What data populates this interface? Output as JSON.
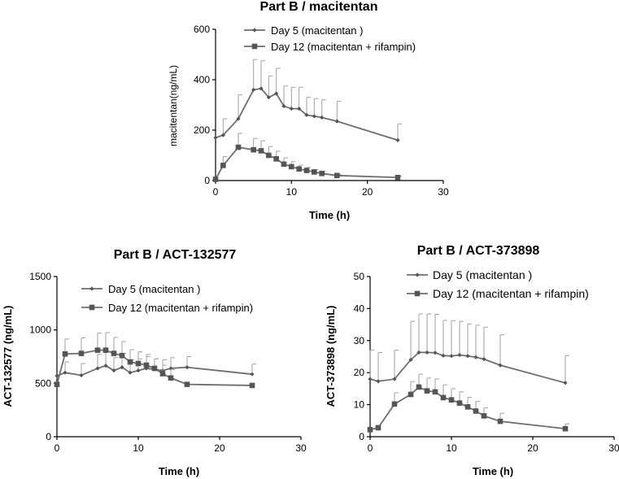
{
  "chart_data": [
    {
      "type": "line",
      "title": "Part B / macitentan",
      "xlabel": "Time (h)",
      "ylabel": "macitentan(ng/mL)",
      "xlim": [
        0,
        30
      ],
      "ylim": [
        0,
        600
      ],
      "xticks": [
        0,
        10,
        20,
        30
      ],
      "yticks": [
        0,
        200,
        400,
        600
      ],
      "legend_position": "top",
      "series": [
        {
          "name": "Day 5 (macitentan )",
          "marker": "diamond",
          "x": [
            0,
            1,
            3,
            5,
            6,
            7,
            8,
            9,
            10,
            11,
            12,
            13,
            14,
            16,
            24
          ],
          "y": [
            170,
            180,
            245,
            360,
            365,
            330,
            345,
            295,
            285,
            285,
            260,
            255,
            250,
            235,
            160
          ],
          "err": [
            0,
            65,
            95,
            120,
            110,
            85,
            100,
            80,
            85,
            85,
            70,
            70,
            70,
            80,
            65
          ]
        },
        {
          "name": "Day 12 (macitentan + rifampin)",
          "marker": "square",
          "x": [
            0,
            1,
            3,
            5,
            6,
            7,
            8,
            9,
            10,
            11,
            12,
            13,
            14,
            16,
            24
          ],
          "y": [
            5,
            60,
            132,
            122,
            118,
            100,
            86,
            65,
            55,
            46,
            40,
            34,
            28,
            20,
            12
          ],
          "err": [
            0,
            35,
            55,
            45,
            40,
            35,
            30,
            25,
            20,
            15,
            12,
            10,
            8,
            5,
            5
          ]
        }
      ]
    },
    {
      "type": "line",
      "title": "Part B / ACT-132577",
      "xlabel": "Time (h)",
      "ylabel": "ACT-132577 (ng/mL)",
      "xlim": [
        0,
        30
      ],
      "ylim": [
        0,
        1500
      ],
      "xticks": [
        0,
        10,
        20,
        30
      ],
      "yticks": [
        0,
        500,
        1000,
        1500
      ],
      "legend_position": "top",
      "series": [
        {
          "name": "Day 5 (macitentan )",
          "marker": "diamond",
          "x": [
            0,
            1,
            3,
            5,
            6,
            7,
            8,
            9,
            10,
            11,
            12,
            13,
            14,
            16,
            24
          ],
          "y": [
            570,
            600,
            575,
            640,
            665,
            620,
            650,
            600,
            620,
            640,
            630,
            620,
            640,
            650,
            585
          ],
          "err": [
            0,
            100,
            110,
            130,
            130,
            120,
            130,
            120,
            110,
            110,
            100,
            100,
            100,
            100,
            95
          ]
        },
        {
          "name": "Day 12 (macitentan + rifampin)",
          "marker": "square",
          "x": [
            0,
            1,
            3,
            5,
            6,
            7,
            8,
            9,
            10,
            11,
            12,
            13,
            14,
            16,
            24
          ],
          "y": [
            490,
            775,
            780,
            810,
            810,
            780,
            760,
            700,
            685,
            670,
            640,
            590,
            550,
            490,
            480
          ],
          "err": [
            0,
            140,
            145,
            160,
            165,
            150,
            130,
            115,
            110,
            100,
            90,
            80,
            80,
            0,
            0
          ]
        }
      ]
    },
    {
      "type": "line",
      "title": "Part B / ACT-373898",
      "xlabel": "Time (h)",
      "ylabel": "ACT-373898 (ng/mL)",
      "xlim": [
        0,
        30
      ],
      "ylim": [
        0,
        50
      ],
      "xticks": [
        0,
        10,
        20,
        30
      ],
      "yticks": [
        0,
        10,
        20,
        30,
        40,
        50
      ],
      "legend_position": "top",
      "series": [
        {
          "name": "Day 5 (macitentan )",
          "marker": "diamond",
          "x": [
            0,
            1,
            3,
            5,
            6,
            7,
            8,
            9,
            10,
            11,
            12,
            13,
            14,
            16,
            24
          ],
          "y": [
            18,
            17.3,
            18,
            24,
            26.3,
            26.3,
            26.2,
            25.3,
            25.2,
            25.5,
            25.2,
            24.8,
            24.2,
            22.3,
            16.8
          ],
          "err": [
            9,
            9,
            9,
            12,
            12,
            12,
            12,
            11,
            11,
            10.5,
            10,
            10,
            10,
            9.5,
            8.5
          ]
        },
        {
          "name": "Day 12 (macitentan + rifampin)",
          "marker": "square",
          "x": [
            0,
            1,
            3,
            5,
            6,
            7,
            8,
            9,
            10,
            11,
            12,
            13,
            14,
            16,
            24
          ],
          "y": [
            2.2,
            2.8,
            10.2,
            13.2,
            15.5,
            14.3,
            14,
            12.2,
            11.5,
            10.5,
            9.3,
            8,
            6.5,
            4.8,
            2.5
          ],
          "err": [
            0,
            0,
            3.5,
            4,
            4,
            4,
            4,
            4,
            3.5,
            3.5,
            3,
            3,
            2.5,
            2.5,
            1.5
          ]
        }
      ]
    }
  ]
}
